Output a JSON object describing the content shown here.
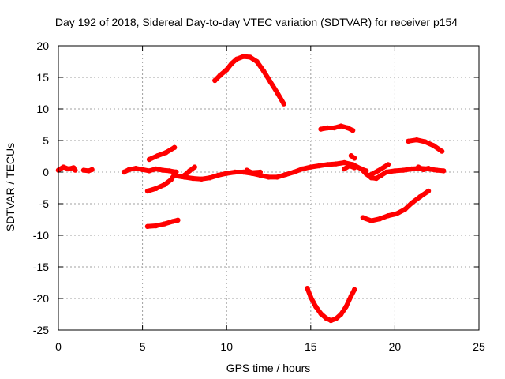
{
  "chart_data": {
    "type": "line",
    "title": "Day 192 of 2018, Sidereal Day-to-day VTEC variation (SDTVAR) for receiver p154",
    "xlabel": "GPS time / hours",
    "ylabel": "SDTVAR / TECUs",
    "xlim": [
      0,
      25
    ],
    "ylim": [
      -25,
      20
    ],
    "xticks": [
      "0",
      "5",
      "10",
      "15",
      "20",
      "25"
    ],
    "yticks": [
      "20",
      "15",
      "10",
      "5",
      "0",
      "-5",
      "-10",
      "-15",
      "-20",
      "-25"
    ],
    "grid": true,
    "legend": "none",
    "series_color": "#ff0000",
    "series": [
      {
        "values": [
          [
            0.0,
            0.3
          ],
          [
            0.3,
            0.8
          ],
          [
            0.6,
            0.5
          ],
          [
            0.9,
            0.7
          ],
          [
            1.0,
            0.3
          ]
        ]
      },
      {
        "values": [
          [
            1.5,
            0.3
          ],
          [
            1.8,
            0.2
          ],
          [
            2.0,
            0.4
          ]
        ]
      },
      {
        "values": [
          [
            3.9,
            0.0
          ],
          [
            4.2,
            0.4
          ],
          [
            4.6,
            0.6
          ],
          [
            5.0,
            0.4
          ],
          [
            5.4,
            0.2
          ],
          [
            5.8,
            0.5
          ],
          [
            6.2,
            0.3
          ],
          [
            6.6,
            0.2
          ],
          [
            7.0,
            0.0
          ]
        ]
      },
      {
        "values": [
          [
            5.3,
            -3.0
          ],
          [
            5.8,
            -2.6
          ],
          [
            6.3,
            -2.0
          ],
          [
            6.7,
            -1.2
          ],
          [
            7.0,
            0.0
          ]
        ]
      },
      {
        "values": [
          [
            5.4,
            2.0
          ],
          [
            5.9,
            2.6
          ],
          [
            6.4,
            3.1
          ],
          [
            6.9,
            3.9
          ]
        ]
      },
      {
        "values": [
          [
            5.3,
            -8.6
          ],
          [
            5.8,
            -8.5
          ],
          [
            6.3,
            -8.2
          ],
          [
            6.8,
            -7.8
          ],
          [
            7.1,
            -7.6
          ]
        ]
      },
      {
        "values": [
          [
            7.0,
            -0.6
          ],
          [
            7.5,
            -0.8
          ],
          [
            8.0,
            -1.0
          ],
          [
            8.5,
            -1.1
          ],
          [
            9.0,
            -0.9
          ],
          [
            9.5,
            -0.5
          ],
          [
            10.0,
            -0.2
          ],
          [
            10.5,
            0.0
          ],
          [
            11.0,
            0.0
          ],
          [
            11.5,
            -0.2
          ],
          [
            12.0,
            -0.5
          ],
          [
            12.5,
            -0.8
          ],
          [
            13.0,
            -0.8
          ],
          [
            13.5,
            -0.4
          ],
          [
            14.0,
            0.0
          ],
          [
            14.5,
            0.5
          ],
          [
            15.0,
            0.8
          ],
          [
            15.5,
            1.0
          ],
          [
            16.0,
            1.2
          ],
          [
            16.5,
            1.3
          ],
          [
            17.0,
            1.5
          ],
          [
            17.5,
            1.2
          ],
          [
            18.0,
            0.5
          ],
          [
            18.3,
            0.2
          ]
        ]
      },
      {
        "values": [
          [
            7.5,
            -0.5
          ],
          [
            7.8,
            0.2
          ],
          [
            8.1,
            0.8
          ]
        ]
      },
      {
        "values": [
          [
            11.2,
            0.3
          ],
          [
            11.5,
            -0.1
          ],
          [
            12.0,
            0.0
          ]
        ]
      },
      {
        "values": [
          [
            17.0,
            0.5
          ],
          [
            17.3,
            1.0
          ],
          [
            17.6,
            0.7
          ]
        ]
      },
      {
        "values": [
          [
            17.4,
            2.6
          ],
          [
            17.6,
            2.2
          ]
        ]
      },
      {
        "values": [
          [
            18.0,
            0.5
          ],
          [
            18.3,
            -0.3
          ],
          [
            18.6,
            -0.9
          ],
          [
            18.9,
            -1.0
          ],
          [
            19.2,
            -0.5
          ],
          [
            19.5,
            0.0
          ],
          [
            20.0,
            0.2
          ],
          [
            20.5,
            0.3
          ],
          [
            21.0,
            0.5
          ],
          [
            21.5,
            0.6
          ],
          [
            22.0,
            0.5
          ],
          [
            22.5,
            0.3
          ],
          [
            22.9,
            0.2
          ]
        ]
      },
      {
        "values": [
          [
            18.5,
            -0.5
          ],
          [
            19.0,
            0.2
          ],
          [
            19.6,
            1.2
          ]
        ]
      },
      {
        "values": [
          [
            21.4,
            0.8
          ],
          [
            21.7,
            0.4
          ],
          [
            22.0,
            0.6
          ]
        ]
      },
      {
        "values": [
          [
            9.3,
            14.5
          ],
          [
            9.6,
            15.3
          ],
          [
            10.0,
            16.2
          ],
          [
            10.3,
            17.2
          ],
          [
            10.6,
            17.9
          ],
          [
            11.0,
            18.3
          ],
          [
            11.4,
            18.2
          ],
          [
            11.8,
            17.5
          ],
          [
            12.2,
            16.0
          ],
          [
            12.6,
            14.3
          ],
          [
            13.0,
            12.6
          ],
          [
            13.4,
            10.8
          ]
        ]
      },
      {
        "values": [
          [
            14.8,
            -18.4
          ],
          [
            15.0,
            -19.8
          ],
          [
            15.3,
            -21.3
          ],
          [
            15.6,
            -22.4
          ],
          [
            15.9,
            -23.1
          ],
          [
            16.2,
            -23.5
          ],
          [
            16.5,
            -23.2
          ],
          [
            16.8,
            -22.5
          ],
          [
            17.1,
            -21.3
          ],
          [
            17.4,
            -19.6
          ],
          [
            17.6,
            -18.6
          ]
        ]
      },
      {
        "values": [
          [
            15.6,
            6.8
          ],
          [
            16.0,
            7.0
          ],
          [
            16.4,
            7.0
          ],
          [
            16.8,
            7.3
          ],
          [
            17.2,
            7.0
          ],
          [
            17.5,
            6.6
          ]
        ]
      },
      {
        "values": [
          [
            18.1,
            -7.2
          ],
          [
            18.6,
            -7.7
          ],
          [
            19.1,
            -7.4
          ],
          [
            19.6,
            -6.9
          ],
          [
            20.1,
            -6.6
          ],
          [
            20.6,
            -5.9
          ],
          [
            21.0,
            -4.9
          ],
          [
            21.5,
            -3.9
          ],
          [
            22.0,
            -3.0
          ]
        ]
      },
      {
        "values": [
          [
            20.8,
            4.9
          ],
          [
            21.3,
            5.1
          ],
          [
            21.8,
            4.8
          ],
          [
            22.3,
            4.2
          ],
          [
            22.8,
            3.3
          ]
        ]
      }
    ]
  }
}
